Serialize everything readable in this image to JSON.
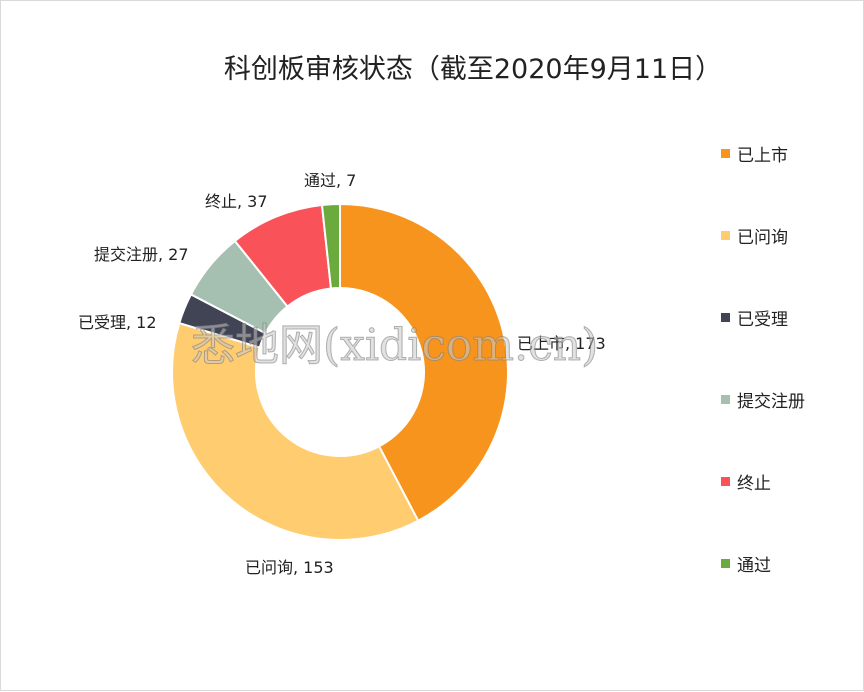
{
  "chart_data": {
    "type": "pie",
    "variant": "donut",
    "title": "科创板审核状态（截至2020年9月11日）",
    "categories": [
      "已上市",
      "已问询",
      "已受理",
      "提交注册",
      "终止",
      "通过"
    ],
    "values": [
      173,
      153,
      12,
      27,
      37,
      7
    ],
    "data_labels": [
      "已上市, 173",
      "已问询, 153",
      "已受理, 12",
      "提交注册, 27",
      "终止, 37",
      "通过, 7"
    ],
    "colors": [
      "#F7941D",
      "#FFCC70",
      "#414455",
      "#A5C0B0",
      "#F95258",
      "#6BAA3D"
    ],
    "legend_position": "right"
  },
  "watermark": "悉地网(xidicom.cn)"
}
